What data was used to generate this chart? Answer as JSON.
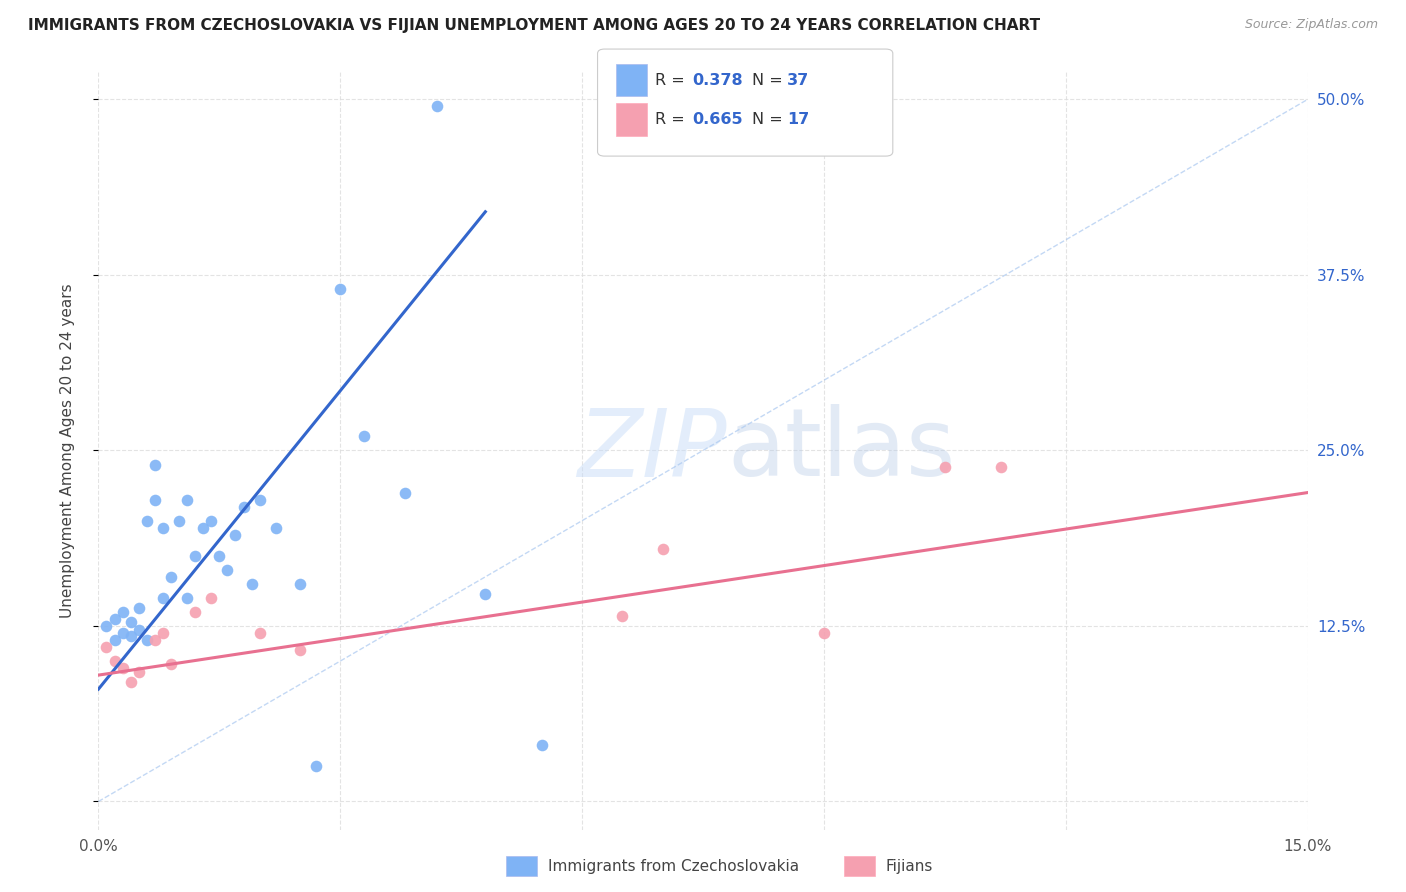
{
  "title": "IMMIGRANTS FROM CZECHOSLOVAKIA VS FIJIAN UNEMPLOYMENT AMONG AGES 20 TO 24 YEARS CORRELATION CHART",
  "source": "Source: ZipAtlas.com",
  "ylabel": "Unemployment Among Ages 20 to 24 years",
  "xlim": [
    0.0,
    0.15
  ],
  "ylim": [
    -0.02,
    0.52
  ],
  "xticks": [
    0.0,
    0.03,
    0.06,
    0.09,
    0.12,
    0.15
  ],
  "xticklabels": [
    "0.0%",
    "",
    "",
    "",
    "",
    "15.0%"
  ],
  "yticks_right": [
    0.0,
    0.125,
    0.25,
    0.375,
    0.5
  ],
  "yticklabels_right": [
    "",
    "12.5%",
    "25.0%",
    "37.5%",
    "50.0%"
  ],
  "legend1_label": "Immigrants from Czechoslovakia",
  "legend2_label": "Fijians",
  "R1": "0.378",
  "N1": "37",
  "R2": "0.665",
  "N2": "17",
  "color_blue": "#7fb3f5",
  "color_pink": "#f5a0b0",
  "color_blue_line": "#3366cc",
  "color_pink_line": "#e87090",
  "color_dashed": "#aac8f0",
  "watermark_color": "#c8ddf8",
  "background_color": "#ffffff",
  "grid_color": "#dddddd",
  "blue_scatter_x": [
    0.001,
    0.002,
    0.002,
    0.003,
    0.003,
    0.004,
    0.004,
    0.005,
    0.005,
    0.006,
    0.006,
    0.007,
    0.007,
    0.008,
    0.008,
    0.009,
    0.01,
    0.011,
    0.011,
    0.012,
    0.013,
    0.014,
    0.015,
    0.016,
    0.017,
    0.018,
    0.019,
    0.02,
    0.022,
    0.025,
    0.027,
    0.03,
    0.033,
    0.038,
    0.042,
    0.048,
    0.055
  ],
  "blue_scatter_y": [
    0.125,
    0.115,
    0.13,
    0.12,
    0.135,
    0.118,
    0.128,
    0.122,
    0.138,
    0.115,
    0.2,
    0.215,
    0.24,
    0.145,
    0.195,
    0.16,
    0.2,
    0.215,
    0.145,
    0.175,
    0.195,
    0.2,
    0.175,
    0.165,
    0.19,
    0.21,
    0.155,
    0.215,
    0.195,
    0.155,
    0.025,
    0.365,
    0.26,
    0.22,
    0.495,
    0.148,
    0.04
  ],
  "pink_scatter_x": [
    0.001,
    0.002,
    0.003,
    0.004,
    0.005,
    0.007,
    0.008,
    0.009,
    0.012,
    0.014,
    0.02,
    0.025,
    0.065,
    0.07,
    0.09,
    0.105,
    0.112
  ],
  "pink_scatter_y": [
    0.11,
    0.1,
    0.095,
    0.085,
    0.092,
    0.115,
    0.12,
    0.098,
    0.135,
    0.145,
    0.12,
    0.108,
    0.132,
    0.18,
    0.12,
    0.238,
    0.238
  ],
  "blue_line_x": [
    0.0,
    0.048
  ],
  "blue_line_y": [
    0.08,
    0.42
  ],
  "blue_dashed_line_x": [
    0.0,
    0.15
  ],
  "blue_dashed_line_y": [
    0.0,
    0.5
  ],
  "pink_line_x": [
    0.0,
    0.15
  ],
  "pink_line_y": [
    0.09,
    0.22
  ]
}
